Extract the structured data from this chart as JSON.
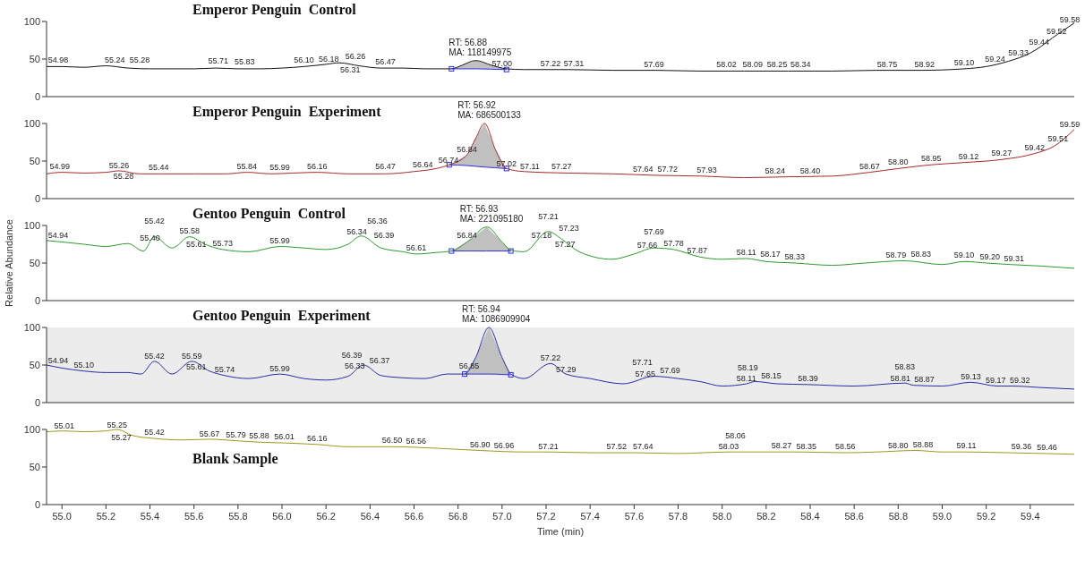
{
  "chart_data": [
    {
      "type": "line",
      "title": "Emperor Penguin",
      "subtitle": "Control",
      "xlim": [
        54.93,
        59.6
      ],
      "ylim": [
        0,
        100
      ],
      "yticks": [
        0,
        50,
        100
      ],
      "tick_labels": "y",
      "marker": "none",
      "series": [
        {
          "type": "area",
          "color": "#c0c0c0",
          "x": [
            56.77,
            56.82,
            56.88,
            56.95,
            57.02
          ],
          "values": [
            37,
            42,
            48,
            42,
            37
          ]
        },
        {
          "type": "line",
          "color": "#111111",
          "x": [
            54.93,
            55.0,
            55.1,
            55.2,
            55.3,
            55.4,
            55.5,
            55.6,
            55.7,
            55.8,
            55.9,
            56.0,
            56.1,
            56.2,
            56.26,
            56.35,
            56.45,
            56.55,
            56.65,
            56.77,
            56.82,
            56.88,
            56.95,
            57.02,
            57.1,
            57.3,
            57.5,
            57.7,
            57.9,
            58.1,
            58.3,
            58.5,
            58.7,
            58.9,
            59.1,
            59.2,
            59.3,
            59.4,
            59.45,
            59.5,
            59.55,
            59.6
          ],
          "values": [
            40,
            40,
            39,
            41,
            38,
            37,
            37,
            37,
            38,
            37,
            37,
            38,
            40,
            43,
            45,
            41,
            38,
            38,
            37,
            37,
            42,
            48,
            42,
            37,
            36,
            36,
            35,
            35,
            34,
            34,
            34,
            34,
            35,
            35,
            37,
            40,
            47,
            58,
            67,
            78,
            88,
            98
          ]
        },
        {
          "type": "line",
          "color": "#3030e0",
          "x": [
            56.77,
            56.82,
            56.88,
            56.95,
            57.02
          ],
          "values": [
            37,
            37,
            37,
            36.5,
            36
          ]
        }
      ],
      "annotations": [
        "RT: 56.88",
        "MA: 118149975",
        {
          "text": "54.98",
          "x": 54.98,
          "y": 40
        },
        {
          "text": "55.24",
          "x": 55.24,
          "y": 40
        },
        {
          "text": "55.28",
          "x": 55.28,
          "y": 40
        },
        {
          "text": "55.71",
          "x": 55.71,
          "y": 39
        },
        {
          "text": "55.83",
          "x": 55.83,
          "y": 38
        },
        {
          "text": "56.10",
          "x": 56.1,
          "y": 40
        },
        {
          "text": "56.18",
          "x": 56.18,
          "y": 42
        },
        {
          "text": "56.26",
          "x": 56.26,
          "y": 45
        },
        {
          "text": "56.31",
          "x": 56.31,
          "y": 40
        },
        {
          "text": "56.47",
          "x": 56.47,
          "y": 38
        },
        {
          "text": "57.00",
          "x": 57.0,
          "y": 36
        },
        {
          "text": "57.22",
          "x": 57.22,
          "y": 36
        },
        {
          "text": "57.31",
          "x": 57.31,
          "y": 36
        },
        {
          "text": "57.69",
          "x": 57.69,
          "y": 35
        },
        {
          "text": "58.02",
          "x": 58.02,
          "y": 34
        },
        {
          "text": "58.09",
          "x": 58.09,
          "y": 34
        },
        {
          "text": "58.25",
          "x": 58.25,
          "y": 34
        },
        {
          "text": "58.34",
          "x": 58.34,
          "y": 34
        },
        {
          "text": "58.75",
          "x": 58.75,
          "y": 35
        },
        {
          "text": "58.92",
          "x": 58.92,
          "y": 35
        },
        {
          "text": "59.10",
          "x": 59.1,
          "y": 37
        },
        {
          "text": "59.24",
          "x": 59.24,
          "y": 42
        },
        {
          "text": "59.33",
          "x": 59.33,
          "y": 50
        },
        {
          "text": "59.44",
          "x": 59.44,
          "y": 64
        },
        {
          "text": "59.52",
          "x": 59.52,
          "y": 78
        },
        {
          "text": "59.58",
          "x": 59.58,
          "y": 94
        }
      ]
    },
    {
      "type": "line",
      "title": "Emperor Penguin",
      "subtitle": "Experiment",
      "xlim": [
        54.93,
        59.6
      ],
      "ylim": [
        0,
        100
      ],
      "yticks": [
        0,
        50,
        100
      ],
      "tick_labels": "y",
      "marker": "none",
      "series": [
        {
          "type": "area",
          "color": "#c0c0c0",
          "x": [
            56.76,
            56.84,
            56.88,
            56.92,
            56.97,
            57.02
          ],
          "values": [
            45,
            58,
            80,
            100,
            65,
            40
          ]
        },
        {
          "type": "line",
          "color": "#a52a2a",
          "x": [
            54.93,
            55.0,
            55.1,
            55.2,
            55.26,
            55.35,
            55.45,
            55.6,
            55.75,
            55.84,
            55.95,
            56.05,
            56.16,
            56.3,
            56.47,
            56.6,
            56.7,
            56.76,
            56.84,
            56.88,
            56.92,
            56.97,
            57.02,
            57.1,
            57.3,
            57.5,
            57.7,
            57.9,
            58.1,
            58.3,
            58.5,
            58.67,
            58.8,
            58.95,
            59.1,
            59.27,
            59.42,
            59.51,
            59.6
          ],
          "values": [
            33,
            35,
            34,
            35,
            37,
            33,
            33,
            33,
            33,
            35,
            33,
            34,
            35,
            33,
            33,
            36,
            40,
            45,
            58,
            80,
            100,
            65,
            40,
            36,
            34,
            33,
            31,
            30,
            28,
            29,
            30,
            35,
            40,
            45,
            48,
            52,
            60,
            70,
            92
          ]
        },
        {
          "type": "line",
          "color": "#3030e0",
          "x": [
            56.76,
            56.84,
            56.88,
            56.92,
            56.97,
            57.02
          ],
          "values": [
            45,
            44,
            43,
            42,
            41,
            40
          ]
        }
      ],
      "annotations": [
        "RT: 56.92",
        "MA: 686500133",
        {
          "text": "54.99",
          "x": 54.99,
          "y": 34
        },
        {
          "text": "55.26",
          "x": 55.26,
          "y": 36
        },
        {
          "text": "55.28",
          "x": 55.28,
          "y": 34
        },
        {
          "text": "55.44",
          "x": 55.44,
          "y": 33
        },
        {
          "text": "55.84",
          "x": 55.84,
          "y": 34
        },
        {
          "text": "55.99",
          "x": 55.99,
          "y": 33
        },
        {
          "text": "56.16",
          "x": 56.16,
          "y": 34
        },
        {
          "text": "56.47",
          "x": 56.47,
          "y": 34
        },
        {
          "text": "56.64",
          "x": 56.64,
          "y": 37
        },
        {
          "text": "56.74",
          "x": 56.74,
          "y": 43
        },
        {
          "text": "56.84",
          "x": 56.84,
          "y": 57
        },
        {
          "text": "57.02",
          "x": 57.02,
          "y": 38
        },
        {
          "text": "57.11",
          "x": 57.11,
          "y": 34
        },
        {
          "text": "57.27",
          "x": 57.27,
          "y": 34
        },
        {
          "text": "57.64",
          "x": 57.64,
          "y": 31
        },
        {
          "text": "57.72",
          "x": 57.72,
          "y": 31
        },
        {
          "text": "57.93",
          "x": 57.93,
          "y": 30
        },
        {
          "text": "58.24",
          "x": 58.24,
          "y": 28
        },
        {
          "text": "58.40",
          "x": 58.4,
          "y": 29
        },
        {
          "text": "58.67",
          "x": 58.67,
          "y": 35
        },
        {
          "text": "58.80",
          "x": 58.8,
          "y": 40
        },
        {
          "text": "58.95",
          "x": 58.95,
          "y": 45
        },
        {
          "text": "59.12",
          "x": 59.12,
          "y": 48
        },
        {
          "text": "59.27",
          "x": 59.27,
          "y": 52
        },
        {
          "text": "59.42",
          "x": 59.42,
          "y": 60
        },
        {
          "text": "59.51",
          "x": 59.51,
          "y": 72
        },
        {
          "text": "59.59",
          "x": 59.59,
          "y": 90
        }
      ]
    },
    {
      "type": "line",
      "title": "Gentoo Penguin",
      "subtitle": "Control",
      "ylabel": "Relative Abundance",
      "xlim": [
        54.93,
        59.6
      ],
      "ylim": [
        0,
        100
      ],
      "yticks": [
        0,
        50,
        100
      ],
      "tick_labels": "y",
      "marker": "none",
      "series": [
        {
          "type": "area",
          "color": "#c0c0c0",
          "x": [
            56.77,
            56.85,
            56.93,
            57.0,
            57.04
          ],
          "values": [
            66,
            80,
            98,
            78,
            67
          ]
        },
        {
          "type": "line",
          "color": "#2e9a2e",
          "x": [
            54.93,
            55.0,
            55.1,
            55.2,
            55.3,
            55.37,
            55.42,
            55.5,
            55.58,
            55.65,
            55.73,
            55.85,
            55.99,
            56.1,
            56.2,
            56.3,
            56.36,
            56.45,
            56.55,
            56.61,
            56.7,
            56.77,
            56.85,
            56.93,
            57.0,
            57.04,
            57.1,
            57.21,
            57.27,
            57.35,
            57.5,
            57.6,
            57.69,
            57.78,
            57.9,
            58.0,
            58.11,
            58.2,
            58.33,
            58.5,
            58.65,
            58.83,
            59.0,
            59.1,
            59.2,
            59.31,
            59.45,
            59.6
          ],
          "values": [
            80,
            78,
            75,
            72,
            76,
            66,
            85,
            70,
            85,
            75,
            68,
            65,
            72,
            70,
            68,
            75,
            86,
            70,
            65,
            62,
            64,
            66,
            80,
            98,
            78,
            67,
            65,
            92,
            82,
            65,
            55,
            62,
            70,
            68,
            58,
            55,
            56,
            52,
            50,
            47,
            50,
            53,
            48,
            52,
            50,
            48,
            46,
            43
          ]
        },
        {
          "type": "line",
          "color": "#3030e0",
          "x": [
            56.77,
            56.85,
            56.93,
            57.0,
            57.04
          ],
          "values": [
            66,
            66,
            66,
            66,
            66
          ]
        }
      ],
      "annotations": [
        "RT: 56.93",
        "MA: 221095180",
        {
          "text": "54.94",
          "x": 54.94,
          "y": 79
        },
        {
          "text": "55.40",
          "x": 55.4,
          "y": 75
        },
        {
          "text": "55.42",
          "x": 55.42,
          "y": 84
        },
        {
          "text": "55.58",
          "x": 55.58,
          "y": 84
        },
        {
          "text": "55.61",
          "x": 55.61,
          "y": 80
        },
        {
          "text": "55.73",
          "x": 55.73,
          "y": 68
        },
        {
          "text": "55.99",
          "x": 55.99,
          "y": 72
        },
        {
          "text": "56.34",
          "x": 56.34,
          "y": 83
        },
        {
          "text": "56.36",
          "x": 56.36,
          "y": 85
        },
        {
          "text": "56.39",
          "x": 56.39,
          "y": 78
        },
        {
          "text": "56.61",
          "x": 56.61,
          "y": 62
        },
        {
          "text": "56.84",
          "x": 56.84,
          "y": 78
        },
        {
          "text": "57.18",
          "x": 57.18,
          "y": 78
        },
        {
          "text": "57.21",
          "x": 57.21,
          "y": 90
        },
        {
          "text": "57.23",
          "x": 57.23,
          "y": 88
        },
        {
          "text": "57.27",
          "x": 57.27,
          "y": 80
        },
        {
          "text": "57.66",
          "x": 57.66,
          "y": 66
        },
        {
          "text": "57.69",
          "x": 57.69,
          "y": 70
        },
        {
          "text": "57.78",
          "x": 57.78,
          "y": 68
        },
        {
          "text": "57.87",
          "x": 57.87,
          "y": 58
        },
        {
          "text": "58.11",
          "x": 58.11,
          "y": 56
        },
        {
          "text": "58.17",
          "x": 58.17,
          "y": 54
        },
        {
          "text": "58.33",
          "x": 58.33,
          "y": 50
        },
        {
          "text": "58.79",
          "x": 58.79,
          "y": 52
        },
        {
          "text": "58.83",
          "x": 58.83,
          "y": 53
        },
        {
          "text": "59.10",
          "x": 59.1,
          "y": 52
        },
        {
          "text": "59.20",
          "x": 59.2,
          "y": 50
        },
        {
          "text": "59.31",
          "x": 59.31,
          "y": 48
        }
      ]
    },
    {
      "type": "line",
      "title": "Gentoo Penguin",
      "subtitle": "Experiment",
      "xlim": [
        54.93,
        59.6
      ],
      "ylim": [
        0,
        100
      ],
      "yticks": [
        0,
        50,
        100
      ],
      "tick_labels": "y",
      "marker": "none",
      "bands": [
        {
          "axis": "x",
          "from": 54.93,
          "to": 59.6,
          "color": "#ececec"
        }
      ],
      "series": [
        {
          "type": "area",
          "color": "#c0c0c0",
          "x": [
            56.83,
            56.88,
            56.94,
            57.0,
            57.04
          ],
          "values": [
            38,
            60,
            100,
            60,
            38
          ]
        },
        {
          "type": "line",
          "color": "#2a2aa8",
          "x": [
            54.93,
            55.0,
            55.1,
            55.2,
            55.3,
            55.36,
            55.42,
            55.5,
            55.59,
            55.67,
            55.74,
            55.85,
            55.99,
            56.1,
            56.2,
            56.3,
            56.37,
            56.45,
            56.55,
            56.65,
            56.75,
            56.83,
            56.88,
            56.94,
            57.0,
            57.04,
            57.1,
            57.22,
            57.29,
            57.4,
            57.55,
            57.69,
            57.8,
            57.9,
            58.0,
            58.11,
            58.15,
            58.25,
            58.39,
            58.6,
            58.83,
            58.87,
            59.0,
            59.13,
            59.25,
            59.32,
            59.45,
            59.6
          ],
          "values": [
            50,
            46,
            42,
            40,
            40,
            38,
            55,
            38,
            55,
            42,
            36,
            32,
            38,
            32,
            30,
            35,
            50,
            36,
            33,
            32,
            38,
            38,
            60,
            100,
            60,
            38,
            32,
            52,
            38,
            32,
            25,
            35,
            32,
            28,
            22,
            25,
            28,
            25,
            24,
            22,
            26,
            23,
            22,
            27,
            22,
            22,
            20,
            18
          ]
        },
        {
          "type": "line",
          "color": "#3030e0",
          "x": [
            56.83,
            56.88,
            56.94,
            57.0,
            57.04
          ],
          "values": [
            38,
            38,
            38,
            37.5,
            37
          ]
        }
      ],
      "annotations": [
        "RT: 56.94",
        "MA: 1086909904",
        {
          "text": "54.94",
          "x": 54.94,
          "y": 48
        },
        {
          "text": "55.10",
          "x": 55.1,
          "y": 42
        },
        {
          "text": "55.42",
          "x": 55.42,
          "y": 54
        },
        {
          "text": "55.59",
          "x": 55.59,
          "y": 54
        },
        {
          "text": "55.61",
          "x": 55.61,
          "y": 52
        },
        {
          "text": "55.74",
          "x": 55.74,
          "y": 36
        },
        {
          "text": "55.99",
          "x": 55.99,
          "y": 37
        },
        {
          "text": "56.33",
          "x": 56.33,
          "y": 40
        },
        {
          "text": "56.37",
          "x": 56.37,
          "y": 48
        },
        {
          "text": "56.39",
          "x": 56.39,
          "y": 42
        },
        {
          "text": "56.85",
          "x": 56.85,
          "y": 40
        },
        {
          "text": "57.22",
          "x": 57.22,
          "y": 51
        },
        {
          "text": "57.29",
          "x": 57.29,
          "y": 36
        },
        {
          "text": "57.65",
          "x": 57.65,
          "y": 30
        },
        {
          "text": "57.69",
          "x": 57.69,
          "y": 34
        },
        {
          "text": "57.71",
          "x": 57.71,
          "y": 32
        },
        {
          "text": "58.11",
          "x": 58.11,
          "y": 24
        },
        {
          "text": "58.15",
          "x": 58.15,
          "y": 27
        },
        {
          "text": "58.19",
          "x": 58.19,
          "y": 25
        },
        {
          "text": "58.39",
          "x": 58.39,
          "y": 24
        },
        {
          "text": "58.81",
          "x": 58.81,
          "y": 24
        },
        {
          "text": "58.83",
          "x": 58.83,
          "y": 26
        },
        {
          "text": "58.87",
          "x": 58.87,
          "y": 23
        },
        {
          "text": "59.13",
          "x": 59.13,
          "y": 26
        },
        {
          "text": "59.17",
          "x": 59.17,
          "y": 22
        },
        {
          "text": "59.32",
          "x": 59.32,
          "y": 21
        }
      ]
    },
    {
      "type": "line",
      "title": "Blank Sample",
      "xlabel": "Time (min)",
      "xlim": [
        54.93,
        59.6
      ],
      "ylim": [
        0,
        100
      ],
      "yticks": [
        0,
        50,
        100
      ],
      "marker": "none",
      "xticks": [
        {
          "value": 55,
          "label": "55.0"
        },
        55.2,
        55.4,
        55.6,
        55.8,
        {
          "value": 56,
          "label": "56.0"
        },
        56.2,
        56.4,
        56.6,
        56.8,
        {
          "value": 57,
          "label": "57.0"
        },
        57.2,
        57.4,
        57.6,
        57.8,
        {
          "value": 58,
          "label": "58.0"
        },
        58.2,
        58.4,
        58.6,
        58.8,
        {
          "value": 59,
          "label": "59.0"
        },
        59.2,
        59.4
      ],
      "series": [
        {
          "type": "line",
          "color": "#9a9a1a",
          "x": [
            54.93,
            55.01,
            55.1,
            55.2,
            55.25,
            55.32,
            55.42,
            55.55,
            55.67,
            55.79,
            55.9,
            56.01,
            56.16,
            56.3,
            56.5,
            56.7,
            56.9,
            57.1,
            57.21,
            57.4,
            57.6,
            57.8,
            58.03,
            58.2,
            58.35,
            58.56,
            58.7,
            58.88,
            59.0,
            59.11,
            59.3,
            59.46,
            59.6
          ],
          "values": [
            97,
            98,
            97,
            98,
            100,
            92,
            88,
            86,
            87,
            85,
            83,
            82,
            80,
            77,
            77,
            75,
            72,
            70,
            70,
            69,
            69,
            68,
            70,
            70,
            70,
            69,
            70,
            72,
            70,
            70,
            69,
            68,
            67
          ]
        }
      ],
      "annotations": [
        {
          "text": "55.01",
          "x": 55.01,
          "y": 97
        },
        {
          "text": "55.25",
          "x": 55.25,
          "y": 98
        },
        {
          "text": "55.27",
          "x": 55.27,
          "y": 94
        },
        {
          "text": "55.42",
          "x": 55.42,
          "y": 88
        },
        {
          "text": "55.67",
          "x": 55.67,
          "y": 86
        },
        {
          "text": "55.79",
          "x": 55.79,
          "y": 85
        },
        {
          "text": "55.88",
          "x": 55.88,
          "y": 83
        },
        {
          "text": "56.01",
          "x": 56.01,
          "y": 82
        },
        {
          "text": "56.16",
          "x": 56.16,
          "y": 80
        },
        {
          "text": "56.50",
          "x": 56.5,
          "y": 77
        },
        {
          "text": "56.56",
          "x": 56.56,
          "y": 76
        },
        {
          "text": "56.90",
          "x": 56.9,
          "y": 72
        },
        {
          "text": "56.96",
          "x": 56.96,
          "y": 70
        },
        {
          "text": "57.21",
          "x": 57.21,
          "y": 69
        },
        {
          "text": "57.52",
          "x": 57.52,
          "y": 69
        },
        {
          "text": "57.64",
          "x": 57.64,
          "y": 69
        },
        {
          "text": "58.03",
          "x": 58.03,
          "y": 69
        },
        {
          "text": "58.06",
          "x": 58.06,
          "y": 70
        },
        {
          "text": "58.27",
          "x": 58.27,
          "y": 70
        },
        {
          "text": "58.35",
          "x": 58.35,
          "y": 69
        },
        {
          "text": "58.56",
          "x": 58.56,
          "y": 69
        },
        {
          "text": "58.80",
          "x": 58.8,
          "y": 70
        },
        {
          "text": "58.88",
          "x": 58.88,
          "y": 71
        },
        {
          "text": "59.11",
          "x": 59.11,
          "y": 70
        },
        {
          "text": "59.36",
          "x": 59.36,
          "y": 69
        },
        {
          "text": "59.46",
          "x": 59.46,
          "y": 68
        }
      ]
    }
  ]
}
